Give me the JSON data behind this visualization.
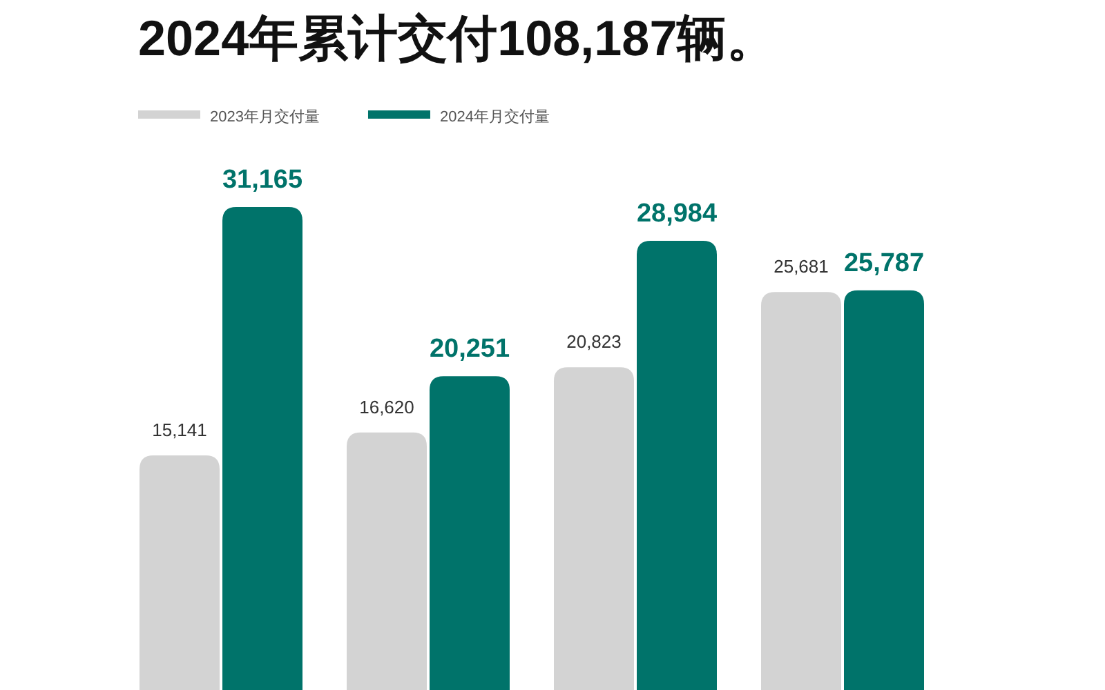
{
  "chart_data": {
    "type": "bar",
    "title": "2024年累计交付108,187辆。",
    "categories": [
      null,
      null,
      null,
      null
    ],
    "series": [
      {
        "name": "2023年月交付量",
        "color": "#d3d3d3",
        "values": [
          15141,
          16620,
          20823,
          25681
        ],
        "value_labels": [
          "15,141",
          "16,620",
          "20,823",
          "25,681"
        ]
      },
      {
        "name": "2024年月交付量",
        "color": "#00736a",
        "values": [
          31165,
          20251,
          28984,
          25787
        ],
        "value_labels": [
          "31,165",
          "20,251",
          "28,984",
          "25,787"
        ]
      }
    ],
    "legend": "top left",
    "grid": false
  }
}
